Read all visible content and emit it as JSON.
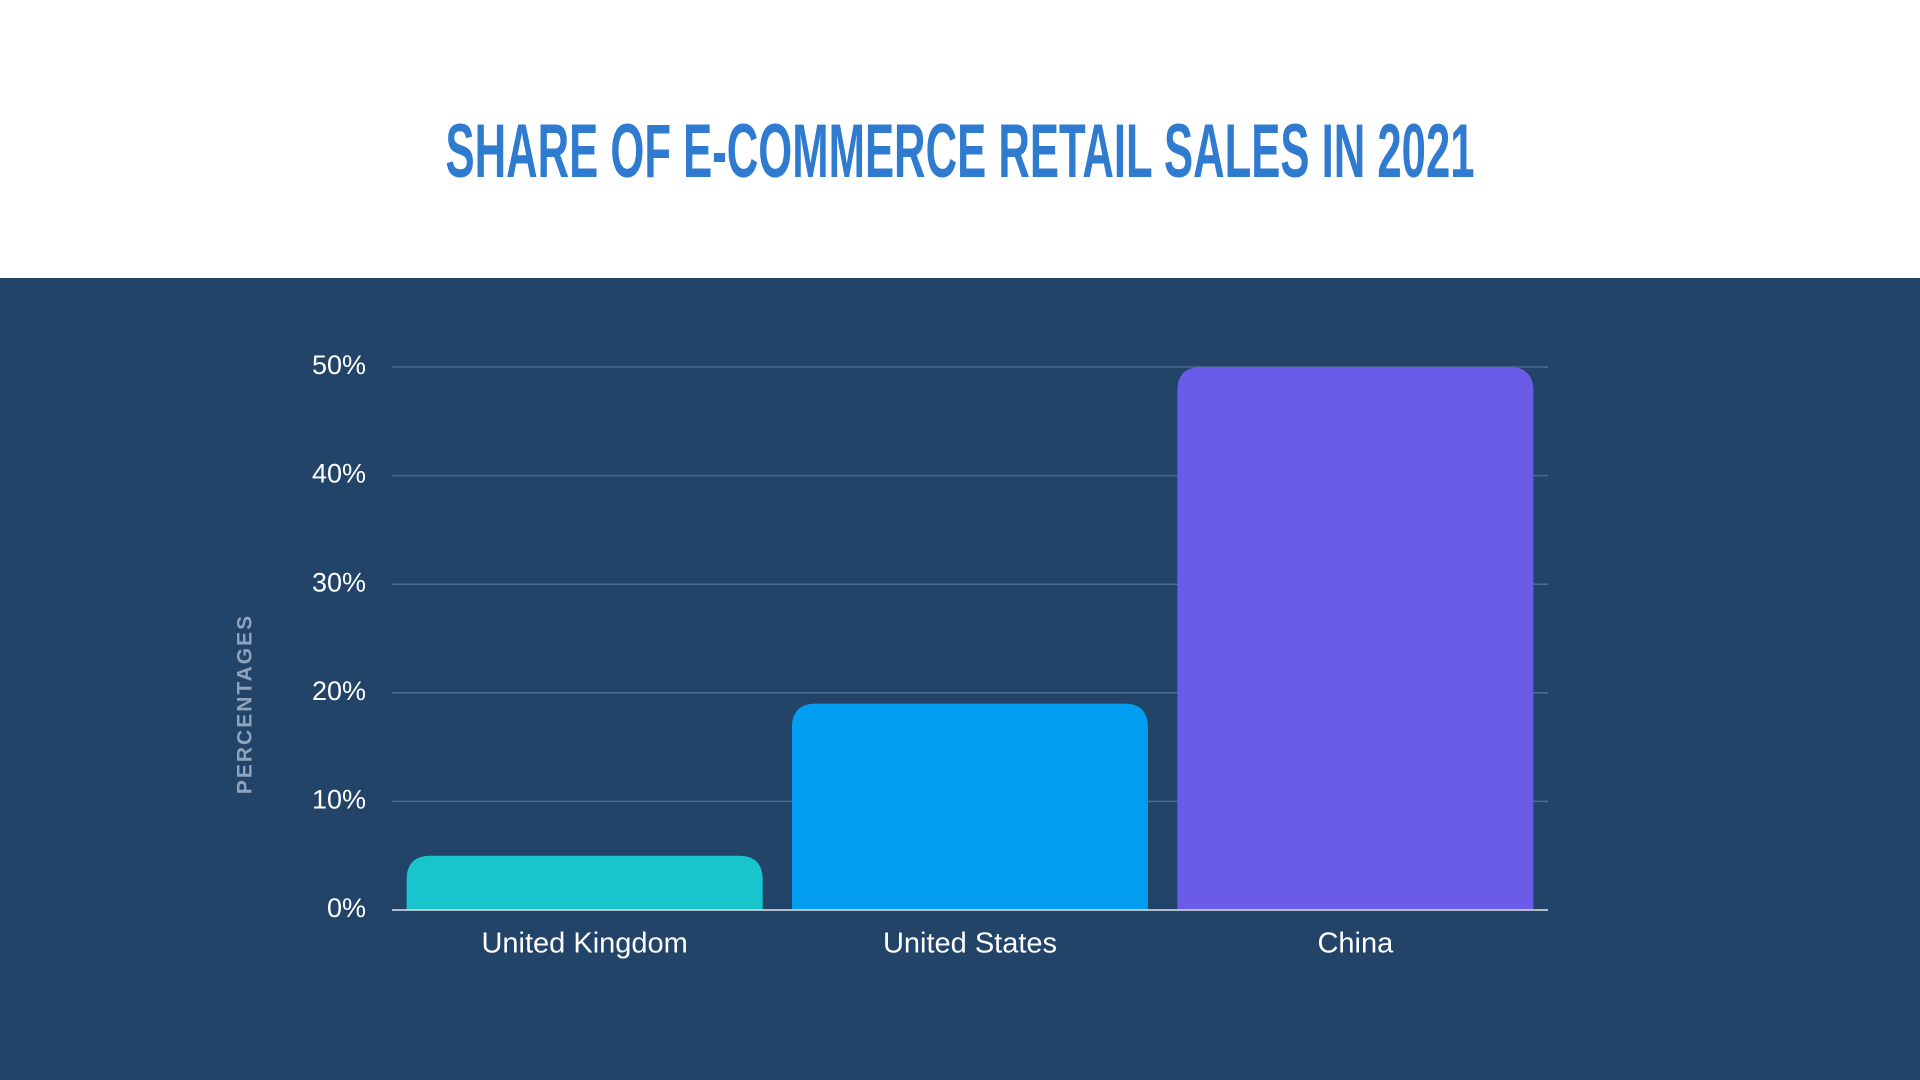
{
  "chart_data": {
    "type": "bar",
    "title": "SHARE OF E-COMMERCE RETAIL SALES IN 2021",
    "y_label": "PERCENTAGES",
    "categories": [
      "United Kingdom",
      "United States",
      "China"
    ],
    "values": [
      5,
      19,
      50
    ],
    "colors": [
      "#17c5cc",
      "#039ef1",
      "#6a5ce8"
    ],
    "ylim": [
      0,
      50
    ],
    "yticks": [
      {
        "value": 0,
        "label": "0%"
      },
      {
        "value": 10,
        "label": "10%"
      },
      {
        "value": 20,
        "label": "20%"
      },
      {
        "value": 30,
        "label": "30%"
      },
      {
        "value": 40,
        "label": "40%"
      },
      {
        "value": 50,
        "label": "50%"
      }
    ],
    "grid": true
  }
}
